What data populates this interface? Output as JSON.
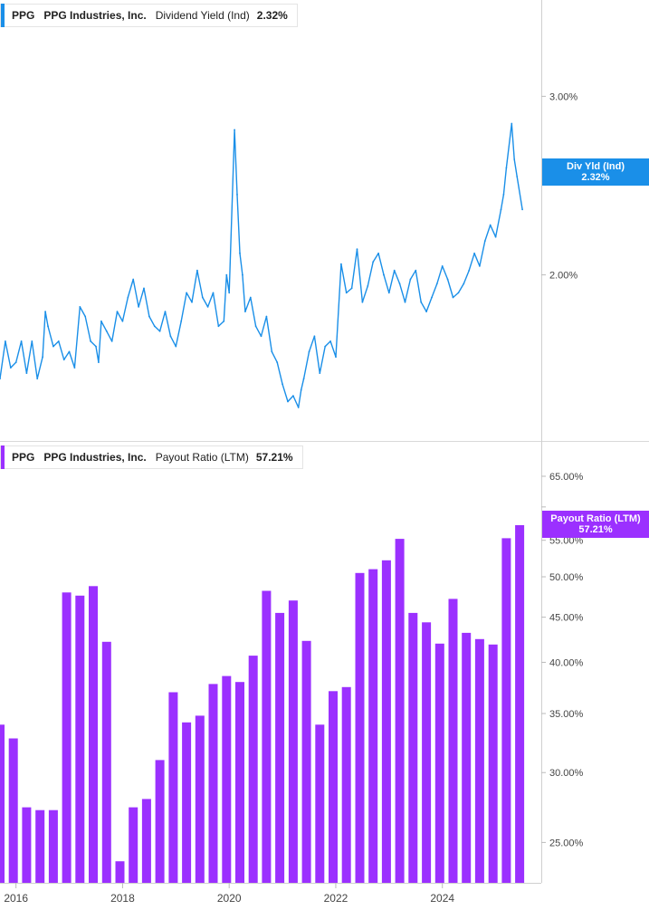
{
  "chart_data": [
    {
      "type": "line",
      "ticker": "PPG",
      "company": "PPG Industries, Inc.",
      "metric": "Dividend Yield (Ind)",
      "current_value": "2.32%",
      "tag_label": "Div Yld (Ind)",
      "tag_value": "2.32%",
      "color": "#1a8fe8",
      "y_scale": "log",
      "ylim": [
        1.45,
        3.3
      ],
      "y_ticks": [
        {
          "value": 3.0,
          "label": "3.00%"
        },
        {
          "value": 2.0,
          "label": "2.00%"
        }
      ],
      "x_range": [
        2015.7,
        2025.55
      ],
      "series": [
        {
          "x": [
            2015.7,
            2015.8,
            2015.9,
            2016.0,
            2016.1,
            2016.2,
            2016.3,
            2016.4,
            2016.5,
            2016.55,
            2016.6,
            2016.7,
            2016.8,
            2016.9,
            2017.0,
            2017.1,
            2017.2,
            2017.3,
            2017.4,
            2017.5,
            2017.55,
            2017.6,
            2017.7,
            2017.8,
            2017.9,
            2018.0,
            2018.1,
            2018.2,
            2018.3,
            2018.4,
            2018.5,
            2018.6,
            2018.7,
            2018.8,
            2018.9,
            2019.0,
            2019.1,
            2019.2,
            2019.3,
            2019.4,
            2019.5,
            2019.6,
            2019.7,
            2019.8,
            2019.9,
            2019.95,
            2020.0,
            2020.1,
            2020.15,
            2020.2,
            2020.25,
            2020.3,
            2020.4,
            2020.5,
            2020.6,
            2020.7,
            2020.8,
            2020.9,
            2021.0,
            2021.1,
            2021.2,
            2021.3,
            2021.35,
            2021.4,
            2021.5,
            2021.6,
            2021.7,
            2021.8,
            2021.9,
            2022.0,
            2022.1,
            2022.2,
            2022.3,
            2022.4,
            2022.5,
            2022.6,
            2022.7,
            2022.8,
            2022.9,
            2023.0,
            2023.1,
            2023.2,
            2023.3,
            2023.4,
            2023.5,
            2023.6,
            2023.7,
            2023.8,
            2023.9,
            2024.0,
            2024.1,
            2024.2,
            2024.3,
            2024.4,
            2024.5,
            2024.6,
            2024.7,
            2024.8,
            2024.9,
            2025.0,
            2025.1,
            2025.15,
            2025.2,
            2025.3,
            2025.35,
            2025.4,
            2025.5
          ],
          "y": [
            1.58,
            1.72,
            1.62,
            1.64,
            1.72,
            1.6,
            1.72,
            1.58,
            1.66,
            1.84,
            1.78,
            1.7,
            1.72,
            1.65,
            1.68,
            1.62,
            1.86,
            1.82,
            1.72,
            1.7,
            1.64,
            1.8,
            1.76,
            1.72,
            1.84,
            1.8,
            1.9,
            1.98,
            1.86,
            1.94,
            1.82,
            1.78,
            1.76,
            1.84,
            1.74,
            1.7,
            1.8,
            1.92,
            1.88,
            2.02,
            1.9,
            1.86,
            1.92,
            1.78,
            1.8,
            2.0,
            1.92,
            2.78,
            2.4,
            2.1,
            2.0,
            1.84,
            1.9,
            1.78,
            1.74,
            1.82,
            1.68,
            1.64,
            1.56,
            1.5,
            1.52,
            1.48,
            1.54,
            1.58,
            1.68,
            1.74,
            1.6,
            1.7,
            1.72,
            1.66,
            2.05,
            1.92,
            1.94,
            2.12,
            1.88,
            1.95,
            2.06,
            2.1,
            2.0,
            1.92,
            2.02,
            1.96,
            1.88,
            1.98,
            2.02,
            1.88,
            1.84,
            1.9,
            1.96,
            2.04,
            1.98,
            1.9,
            1.92,
            1.96,
            2.02,
            2.1,
            2.04,
            2.16,
            2.24,
            2.18,
            2.32,
            2.4,
            2.55,
            2.82,
            2.6,
            2.5,
            2.32
          ]
        }
      ]
    },
    {
      "type": "bar",
      "ticker": "PPG",
      "company": "PPG Industries, Inc.",
      "metric": "Payout Ratio (LTM)",
      "current_value": "57.21%",
      "tag_label": "Payout Ratio (LTM)",
      "tag_value": "57.21%",
      "color": "#9b30ff",
      "y_scale": "log",
      "ylim": [
        22.5,
        67.5
      ],
      "y_ticks": [
        {
          "value": 65,
          "label": "65.00%"
        },
        {
          "value": 60,
          "label": ""
        },
        {
          "value": 55,
          "label": "55.00%"
        },
        {
          "value": 50,
          "label": "50.00%"
        },
        {
          "value": 45,
          "label": "45.00%"
        },
        {
          "value": 40,
          "label": "40.00%"
        },
        {
          "value": 35,
          "label": "35.00%"
        },
        {
          "value": 30,
          "label": "30.00%"
        },
        {
          "value": 25,
          "label": "25.00%"
        }
      ],
      "x_range": [
        2015.7,
        2025.55
      ],
      "series": [
        {
          "x": [
            2015.7,
            2015.95,
            2016.2,
            2016.45,
            2016.7,
            2016.95,
            2017.2,
            2017.45,
            2017.7,
            2017.95,
            2018.2,
            2018.45,
            2018.7,
            2018.95,
            2019.2,
            2019.45,
            2019.7,
            2019.95,
            2020.2,
            2020.45,
            2020.7,
            2020.95,
            2021.2,
            2021.45,
            2021.7,
            2021.95,
            2022.2,
            2022.45,
            2022.7,
            2022.95,
            2023.2,
            2023.45,
            2023.7,
            2023.95,
            2024.2,
            2024.45,
            2024.7,
            2024.95,
            2025.2,
            2025.45
          ],
          "y": [
            34.0,
            32.8,
            27.4,
            27.2,
            27.2,
            48.0,
            47.6,
            48.8,
            42.2,
            23.8,
            27.4,
            28.0,
            31.0,
            37.0,
            34.2,
            34.8,
            37.8,
            38.6,
            38.0,
            40.7,
            48.2,
            45.5,
            47.0,
            42.3,
            34.0,
            37.1,
            37.5,
            50.5,
            51.0,
            52.2,
            55.2,
            45.5,
            44.4,
            42.0,
            47.2,
            43.2,
            42.5,
            41.9,
            55.3,
            57.21
          ]
        }
      ]
    }
  ],
  "x_axis_labels": [
    {
      "value": 2016,
      "label": "2016"
    },
    {
      "value": 2018,
      "label": "2018"
    },
    {
      "value": 2020,
      "label": "2020"
    },
    {
      "value": 2022,
      "label": "2022"
    },
    {
      "value": 2024,
      "label": "2024"
    }
  ]
}
